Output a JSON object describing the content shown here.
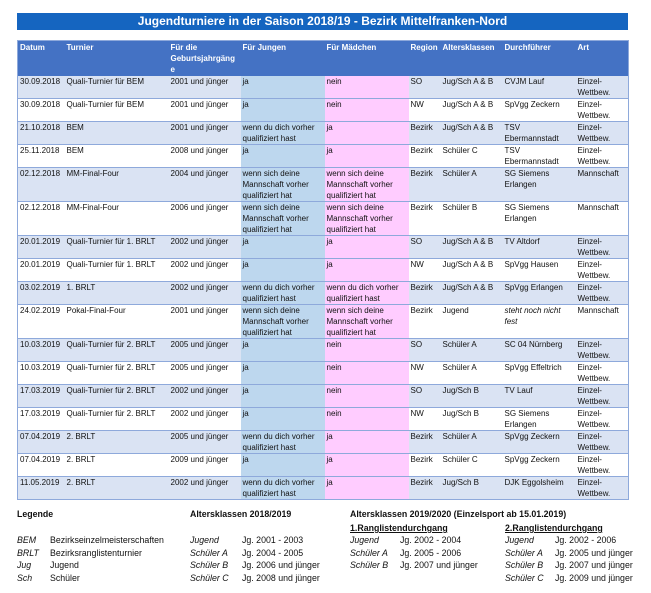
{
  "title": "Jugendturniere in der Saison 2018/19 - Bezirk Mittelfranken-Nord",
  "columns": [
    "Datum",
    "Turnier",
    "Für die Geburtsjahrgänge",
    "Für Jungen",
    "Für Mädchen",
    "Region",
    "Altersklassen",
    "Durchführer",
    "Art"
  ],
  "rows": [
    [
      "30.09.2018",
      "Quali-Turnier für BEM",
      "2001 und jünger",
      "ja",
      "nein",
      "SO",
      "Jug/Sch A & B",
      "CVJM Lauf",
      "Einzel-Wettbew."
    ],
    [
      "30.09.2018",
      "Quali-Turnier für BEM",
      "2001 und jünger",
      "ja",
      "nein",
      "NW",
      "Jug/Sch A & B",
      "SpVgg Zeckern",
      "Einzel-Wettbew."
    ],
    [
      "21.10.2018",
      "BEM",
      "2001 und jünger",
      "wenn du dich vorher qualifiziert hast",
      "ja",
      "Bezirk",
      "Jug/Sch A & B",
      "TSV Ebermannstadt",
      "Einzel-Wettbew."
    ],
    [
      "25.11.2018",
      "BEM",
      "2008 und jünger",
      "ja",
      "ja",
      "Bezirk",
      "Schüler C",
      "TSV Ebermannstadt",
      "Einzel-Wettbew."
    ],
    [
      "02.12.2018",
      "MM-Final-Four",
      "2004 und jünger",
      "wenn sich deine Mannschaft vorher qualifiziert hat",
      "wenn sich deine Mannschaft vorher qualifiziert hat",
      "Bezirk",
      "Schüler A",
      "SG Siemens Erlangen",
      "Mannschaft"
    ],
    [
      "02.12.2018",
      "MM-Final-Four",
      "2006 und jünger",
      "wenn sich deine Mannschaft vorher qualifiziert hat",
      "wenn sich deine Mannschaft vorher qualifiziert hat",
      "Bezirk",
      "Schüler B",
      "SG Siemens Erlangen",
      "Mannschaft"
    ],
    [
      "20.01.2019",
      "Quali-Turnier für 1. BRLT",
      "2002 und jünger",
      "ja",
      "ja",
      "SO",
      "Jug/Sch A & B",
      "TV Altdorf",
      "Einzel-Wettbew."
    ],
    [
      "20.01.2019",
      "Quali-Turnier für 1. BRLT",
      "2002 und jünger",
      "ja",
      "ja",
      "NW",
      "Jug/Sch A & B",
      "SpVgg Hausen",
      "Einzel-Wettbew."
    ],
    [
      "03.02.2019",
      "1. BRLT",
      "2002 und jünger",
      "wenn du dich vorher qualifiziert hast",
      "wenn du dich vorher qualifiziert hast",
      "Bezirk",
      "Jug/Sch A & B",
      "SpVgg Erlangen",
      "Einzel-Wettbew."
    ],
    [
      "24.02.2019",
      "Pokal-Final-Four",
      "2001 und jünger",
      "wenn sich deine Mannschaft vorher qualifiziert hat",
      "wenn sich deine Mannschaft vorher qualifiziert hat",
      "Bezirk",
      "Jugend",
      "steht noch nicht fest",
      "Mannschaft"
    ],
    [
      "10.03.2019",
      "Quali-Turnier für 2. BRLT",
      "2005 und jünger",
      "ja",
      "nein",
      "SO",
      "Schüler A",
      "SC 04 Nürnberg",
      "Einzel-Wettbew."
    ],
    [
      "10.03.2019",
      "Quali-Turnier für 2. BRLT",
      "2005 und jünger",
      "ja",
      "nein",
      "NW",
      "Schüler A",
      "SpVgg Effeltrich",
      "Einzel-Wettbew."
    ],
    [
      "17.03.2019",
      "Quali-Turnier für 2. BRLT",
      "2002 und jünger",
      "ja",
      "nein",
      "SO",
      "Jug/Sch B",
      "TV Lauf",
      "Einzel-Wettbew."
    ],
    [
      "17.03.2019",
      "Quali-Turnier für 2. BRLT",
      "2002 und jünger",
      "ja",
      "nein",
      "NW",
      "Jug/Sch B",
      "SG Siemens Erlangen",
      "Einzel-Wettbew."
    ],
    [
      "07.04.2019",
      "2. BRLT",
      "2005 und jünger",
      "wenn du dich vorher qualifiziert hast",
      "ja",
      "Bezirk",
      "Schüler A",
      "SpVgg Zeckern",
      "Einzel-Wettbew."
    ],
    [
      "07.04.2019",
      "2. BRLT",
      "2009 und jünger",
      "ja",
      "ja",
      "Bezirk",
      "Schüler C",
      "SpVgg Zeckern",
      "Einzel-Wettbew."
    ],
    [
      "11.05.2019",
      "2. BRLT",
      "2002 und jünger",
      "wenn du dich vorher qualifiziert hast",
      "ja",
      "Bezirk",
      "Jug/Sch B",
      "DJK Eggolsheim",
      "Einzel-Wettbew."
    ]
  ],
  "legend": {
    "title": "Legende",
    "items": [
      [
        "BEM",
        "Bezirkseinzelmeisterschaften"
      ],
      [
        "BRLT",
        "Bezirksranglistenturnier"
      ],
      [
        "Jug",
        "Jugend"
      ],
      [
        "Sch",
        "Schüler"
      ]
    ]
  },
  "ak2018": {
    "title": "Altersklassen 2018/2019",
    "items": [
      [
        "Jugend",
        "Jg. 2001 - 2003"
      ],
      [
        "Schüler A",
        "Jg. 2004 - 2005"
      ],
      [
        "Schüler B",
        "Jg. 2006 und jünger"
      ],
      [
        "Schüler C",
        "Jg. 2008 und jünger"
      ]
    ]
  },
  "ak2019": {
    "title": "Altersklassen 2019/2020 (Einzelsport ab 15.01.2019)",
    "d1": {
      "title": "1.Ranglistendurchgang",
      "items": [
        [
          "Jugend",
          "Jg. 2002 - 2004"
        ],
        [
          "Schüler A",
          "Jg. 2005 - 2006"
        ],
        [
          "Schüler B",
          "Jg. 2007 und jünger"
        ]
      ]
    },
    "d2": {
      "title": "2.Ranglistendurchgang",
      "items": [
        [
          "Jugend",
          "Jg. 2002 - 2006"
        ],
        [
          "Schüler A",
          "Jg. 2005 und jünger"
        ],
        [
          "Schüler B",
          "Jg. 2007 und jünger"
        ],
        [
          "Schüler C",
          "Jg. 2009 und jünger"
        ]
      ]
    }
  },
  "colors": {
    "title_bg": "#1565c0",
    "header_bg": "#4472c4",
    "row_alt": "#dae3f3",
    "jungen": "#bdd7ee",
    "maedchen": "#ffccff"
  }
}
